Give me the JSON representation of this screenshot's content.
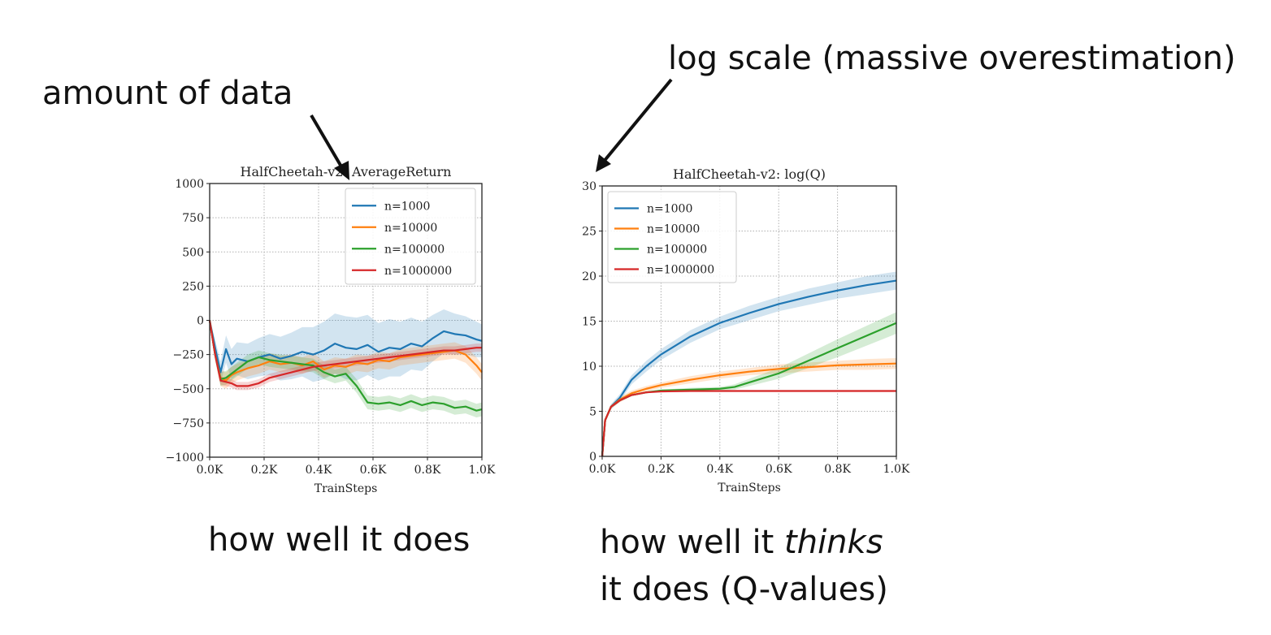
{
  "annotations": {
    "left_arrow_label": "amount of data",
    "right_arrow_label": "log scale (massive overestimation)"
  },
  "captions": {
    "left": "how well it does",
    "right_line1_prefix": "how well it ",
    "right_line1_emph": "thinks",
    "right_line2": "it does (Q-values)"
  },
  "colors": {
    "n1000": "#1f77b4",
    "n10000": "#ff7f0e",
    "n100000": "#2ca02c",
    "n1000000": "#d62728"
  },
  "chart_data": [
    {
      "type": "line",
      "title": "HalfCheetah-v2:  AverageReturn",
      "xlabel": "TrainSteps",
      "ylabel": "",
      "xlim": [
        0,
        1000
      ],
      "ylim": [
        -1000,
        1000
      ],
      "xticks": [
        0,
        200,
        400,
        600,
        800,
        1000
      ],
      "xtick_labels": [
        "0.0K",
        "0.2K",
        "0.4K",
        "0.6K",
        "0.8K",
        "1.0K"
      ],
      "yticks": [
        -1000,
        -750,
        -500,
        -250,
        0,
        250,
        500,
        750,
        1000
      ],
      "ytick_labels": [
        "−1000",
        "−750",
        "−500",
        "−250",
        "0",
        "250",
        "500",
        "750",
        "1000"
      ],
      "grid": true,
      "legend": "top-right",
      "series": [
        {
          "name": "n=1000",
          "color": "#1f77b4",
          "x": [
            0,
            20,
            40,
            60,
            80,
            100,
            140,
            180,
            220,
            260,
            300,
            340,
            380,
            420,
            460,
            500,
            540,
            580,
            620,
            660,
            700,
            740,
            780,
            820,
            860,
            900,
            940,
            980,
            1000
          ],
          "y": [
            0,
            -200,
            -380,
            -210,
            -320,
            -280,
            -300,
            -270,
            -250,
            -280,
            -260,
            -230,
            -250,
            -220,
            -170,
            -200,
            -210,
            -180,
            -230,
            -200,
            -210,
            -170,
            -190,
            -130,
            -80,
            -100,
            -110,
            -140,
            -150
          ],
          "band": [
            0,
            60,
            80,
            100,
            110,
            120,
            130,
            140,
            150,
            160,
            170,
            180,
            200,
            210,
            220,
            230,
            230,
            220,
            210,
            210,
            200,
            190,
            180,
            170,
            160,
            150,
            140,
            130,
            120
          ]
        },
        {
          "name": "n=10000",
          "color": "#ff7f0e",
          "x": [
            0,
            20,
            40,
            60,
            80,
            100,
            140,
            180,
            220,
            260,
            300,
            340,
            380,
            420,
            460,
            500,
            540,
            580,
            620,
            660,
            700,
            740,
            780,
            820,
            860,
            900,
            940,
            980,
            1000
          ],
          "y": [
            0,
            -250,
            -420,
            -440,
            -400,
            -380,
            -350,
            -330,
            -300,
            -320,
            -310,
            -330,
            -300,
            -360,
            -330,
            -340,
            -310,
            -320,
            -290,
            -300,
            -270,
            -260,
            -250,
            -240,
            -230,
            -220,
            -250,
            -330,
            -380
          ],
          "band": [
            0,
            40,
            60,
            60,
            60,
            60,
            60,
            60,
            60,
            60,
            60,
            60,
            60,
            60,
            60,
            60,
            60,
            60,
            60,
            60,
            60,
            60,
            60,
            60,
            60,
            60,
            60,
            60,
            60
          ]
        },
        {
          "name": "n=100000",
          "color": "#2ca02c",
          "x": [
            0,
            20,
            40,
            60,
            80,
            100,
            140,
            180,
            220,
            260,
            300,
            340,
            380,
            420,
            460,
            500,
            540,
            580,
            620,
            660,
            700,
            740,
            780,
            820,
            860,
            900,
            940,
            980,
            1000
          ],
          "y": [
            0,
            -250,
            -430,
            -420,
            -390,
            -360,
            -300,
            -270,
            -290,
            -300,
            -310,
            -320,
            -330,
            -380,
            -410,
            -390,
            -480,
            -600,
            -610,
            -600,
            -620,
            -590,
            -620,
            -600,
            -610,
            -640,
            -630,
            -660,
            -650
          ],
          "band": [
            0,
            40,
            50,
            50,
            50,
            50,
            50,
            50,
            50,
            50,
            50,
            50,
            50,
            50,
            50,
            50,
            50,
            50,
            50,
            50,
            50,
            50,
            50,
            50,
            50,
            50,
            50,
            50,
            50
          ]
        },
        {
          "name": "n=1000000",
          "color": "#d62728",
          "x": [
            0,
            20,
            40,
            60,
            80,
            100,
            140,
            180,
            220,
            260,
            300,
            340,
            380,
            420,
            460,
            500,
            540,
            580,
            620,
            660,
            700,
            740,
            780,
            820,
            860,
            900,
            940,
            980,
            1000
          ],
          "y": [
            0,
            -250,
            -440,
            -450,
            -460,
            -480,
            -480,
            -460,
            -420,
            -400,
            -380,
            -360,
            -340,
            -330,
            -320,
            -310,
            -300,
            -290,
            -280,
            -270,
            -260,
            -250,
            -240,
            -230,
            -220,
            -220,
            -210,
            -200,
            -200
          ],
          "band": [
            0,
            20,
            30,
            30,
            30,
            30,
            30,
            30,
            30,
            30,
            30,
            30,
            30,
            30,
            30,
            30,
            30,
            30,
            30,
            30,
            30,
            30,
            30,
            30,
            30,
            30,
            30,
            30,
            30
          ]
        }
      ]
    },
    {
      "type": "line",
      "title": "HalfCheetah-v2:  log(Q)",
      "xlabel": "TrainSteps",
      "ylabel": "",
      "xlim": [
        0,
        1000
      ],
      "ylim": [
        0,
        30
      ],
      "xticks": [
        0,
        200,
        400,
        600,
        800,
        1000
      ],
      "xtick_labels": [
        "0.0K",
        "0.2K",
        "0.4K",
        "0.6K",
        "0.8K",
        "1.0K"
      ],
      "yticks": [
        0,
        5,
        10,
        15,
        20,
        25,
        30
      ],
      "ytick_labels": [
        "0",
        "5",
        "10",
        "15",
        "20",
        "25",
        "30"
      ],
      "grid": true,
      "legend": "top-left",
      "series": [
        {
          "name": "n=1000",
          "color": "#1f77b4",
          "x": [
            0,
            10,
            30,
            60,
            100,
            150,
            200,
            300,
            400,
            500,
            600,
            700,
            800,
            900,
            1000
          ],
          "y": [
            0,
            4,
            5.5,
            6.5,
            8.5,
            10,
            11.3,
            13.3,
            14.8,
            15.9,
            16.9,
            17.7,
            18.4,
            19.0,
            19.5
          ],
          "band": [
            0,
            0.2,
            0.3,
            0.4,
            0.5,
            0.6,
            0.6,
            0.7,
            0.7,
            0.8,
            0.8,
            0.9,
            0.9,
            1.0,
            1.0
          ]
        },
        {
          "name": "n=10000",
          "color": "#ff7f0e",
          "x": [
            0,
            10,
            30,
            60,
            100,
            150,
            200,
            300,
            400,
            500,
            600,
            700,
            800,
            900,
            1000
          ],
          "y": [
            0,
            4,
            5.5,
            6.3,
            7.0,
            7.5,
            7.9,
            8.5,
            9.0,
            9.4,
            9.7,
            9.9,
            10.1,
            10.2,
            10.3
          ],
          "band": [
            0,
            0.2,
            0.2,
            0.3,
            0.3,
            0.3,
            0.3,
            0.4,
            0.4,
            0.4,
            0.5,
            0.5,
            0.5,
            0.6,
            0.6
          ]
        },
        {
          "name": "n=100000",
          "color": "#2ca02c",
          "x": [
            0,
            10,
            30,
            60,
            100,
            150,
            200,
            300,
            400,
            450,
            500,
            600,
            700,
            800,
            900,
            1000
          ],
          "y": [
            0,
            4,
            5.5,
            6.2,
            6.8,
            7.1,
            7.3,
            7.4,
            7.5,
            7.7,
            8.2,
            9.2,
            10.6,
            12.0,
            13.4,
            14.8
          ],
          "band": [
            0,
            0.1,
            0.1,
            0.1,
            0.1,
            0.1,
            0.1,
            0.2,
            0.2,
            0.3,
            0.4,
            0.6,
            0.8,
            1.0,
            1.1,
            1.2
          ]
        },
        {
          "name": "n=1000000",
          "color": "#d62728",
          "x": [
            0,
            10,
            30,
            60,
            100,
            150,
            200,
            300,
            400,
            500,
            600,
            700,
            800,
            900,
            1000
          ],
          "y": [
            0,
            4,
            5.5,
            6.2,
            6.8,
            7.1,
            7.2,
            7.25,
            7.25,
            7.25,
            7.25,
            7.25,
            7.25,
            7.25,
            7.25
          ],
          "band": [
            0,
            0.1,
            0.1,
            0.1,
            0.1,
            0.1,
            0.1,
            0.1,
            0.1,
            0.1,
            0.1,
            0.1,
            0.1,
            0.1,
            0.1
          ]
        }
      ]
    }
  ]
}
